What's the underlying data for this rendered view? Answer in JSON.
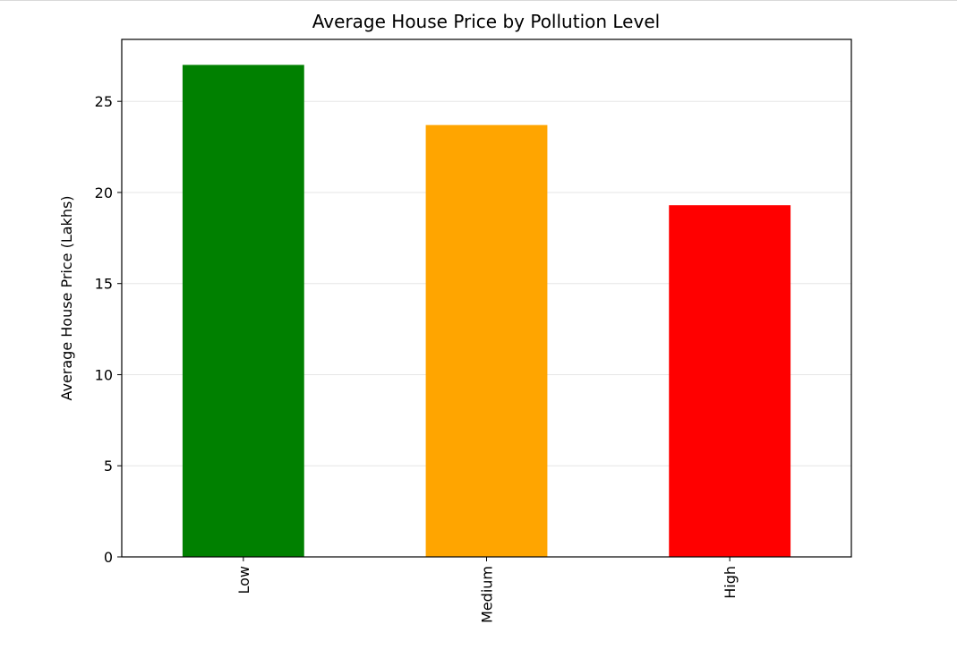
{
  "chart_data": {
    "type": "bar",
    "title": "Average House Price by Pollution Level",
    "xlabel": "",
    "ylabel": "Average House Price (Lakhs)",
    "categories": [
      "Low",
      "Medium",
      "High"
    ],
    "values": [
      27.0,
      23.7,
      19.3
    ],
    "colors": [
      "#008000",
      "#ffa500",
      "#ff0000"
    ],
    "ylim": [
      0,
      28.4
    ],
    "yticks": [
      0,
      5,
      10,
      15,
      20,
      25
    ],
    "ytick_labels": [
      "0",
      "5",
      "10",
      "15",
      "20",
      "25"
    ],
    "grid": "y",
    "grid_color": "#e6e6e6",
    "xtick_rotation": "vertical"
  }
}
